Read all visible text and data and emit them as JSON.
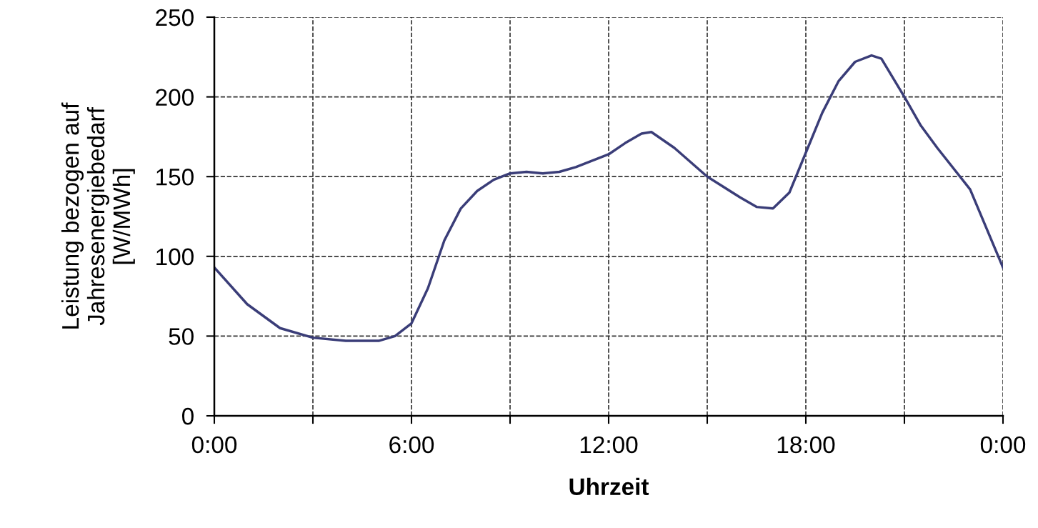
{
  "chart_data": {
    "type": "line",
    "xlabel": "Uhrzeit",
    "ylabel": "Leistung bezogen auf\nJahresenergiebedarf\n[W/MWh]",
    "x": [
      0,
      1,
      2,
      3,
      4,
      5,
      5.5,
      6,
      6.5,
      7,
      7.5,
      8,
      8.5,
      9,
      9.5,
      10,
      10.5,
      11,
      12,
      12.5,
      13,
      13.3,
      14,
      15,
      16,
      16.5,
      17,
      17.5,
      18,
      18.5,
      19,
      19.5,
      20,
      20.3,
      21,
      21.5,
      22,
      23,
      24
    ],
    "series": [
      {
        "color": "#3a3d78",
        "values": [
          93,
          70,
          55,
          49,
          47,
          47,
          50,
          58,
          80,
          110,
          130,
          141,
          148,
          152,
          153,
          152,
          153,
          156,
          164,
          171,
          177,
          178,
          168,
          150,
          137,
          131,
          130,
          140,
          165,
          190,
          210,
          222,
          226,
          224,
          200,
          182,
          168,
          142,
          93
        ]
      }
    ],
    "xlim": [
      0,
      24
    ],
    "xticks": [
      {
        "value": 0,
        "label": "0:00"
      },
      {
        "value": 3,
        "label": null
      },
      {
        "value": 6,
        "label": "6:00"
      },
      {
        "value": 9,
        "label": null
      },
      {
        "value": 12,
        "label": "12:00"
      },
      {
        "value": 15,
        "label": null
      },
      {
        "value": 18,
        "label": "18:00"
      },
      {
        "value": 21,
        "label": null
      },
      {
        "value": 24,
        "label": "0:00"
      }
    ],
    "ylim": [
      0,
      250
    ],
    "yticks": [
      0,
      50,
      100,
      150,
      200,
      250
    ],
    "grid": true,
    "marker": "none"
  }
}
